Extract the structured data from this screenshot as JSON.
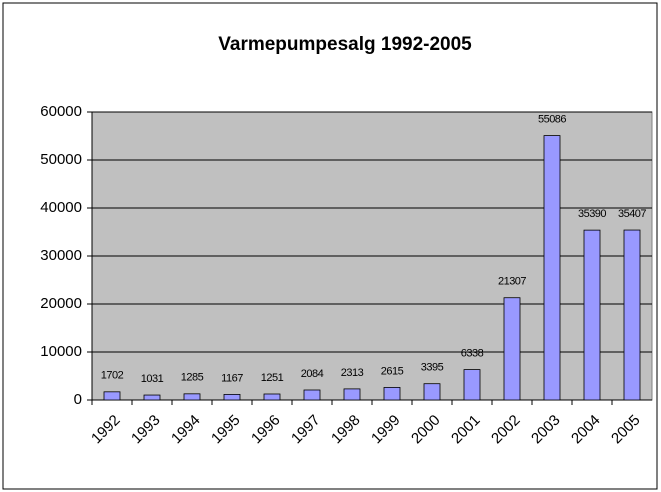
{
  "chart_data": {
    "type": "bar",
    "title": "Varmepumpesalg 1992-2005",
    "categories": [
      "1992",
      "1993",
      "1994",
      "1995",
      "1996",
      "1997",
      "1998",
      "1999",
      "2000",
      "2001",
      "2002",
      "2003",
      "2004",
      "2005"
    ],
    "values": [
      1702,
      1031,
      1285,
      1167,
      1251,
      2084,
      2313,
      2615,
      3395,
      6338,
      21307,
      55086,
      35390,
      35407
    ],
    "color": "#9999ff",
    "ylim": [
      0,
      60000
    ],
    "yticks": [
      0,
      10000,
      20000,
      30000,
      40000,
      50000,
      60000
    ],
    "grid": true
  }
}
